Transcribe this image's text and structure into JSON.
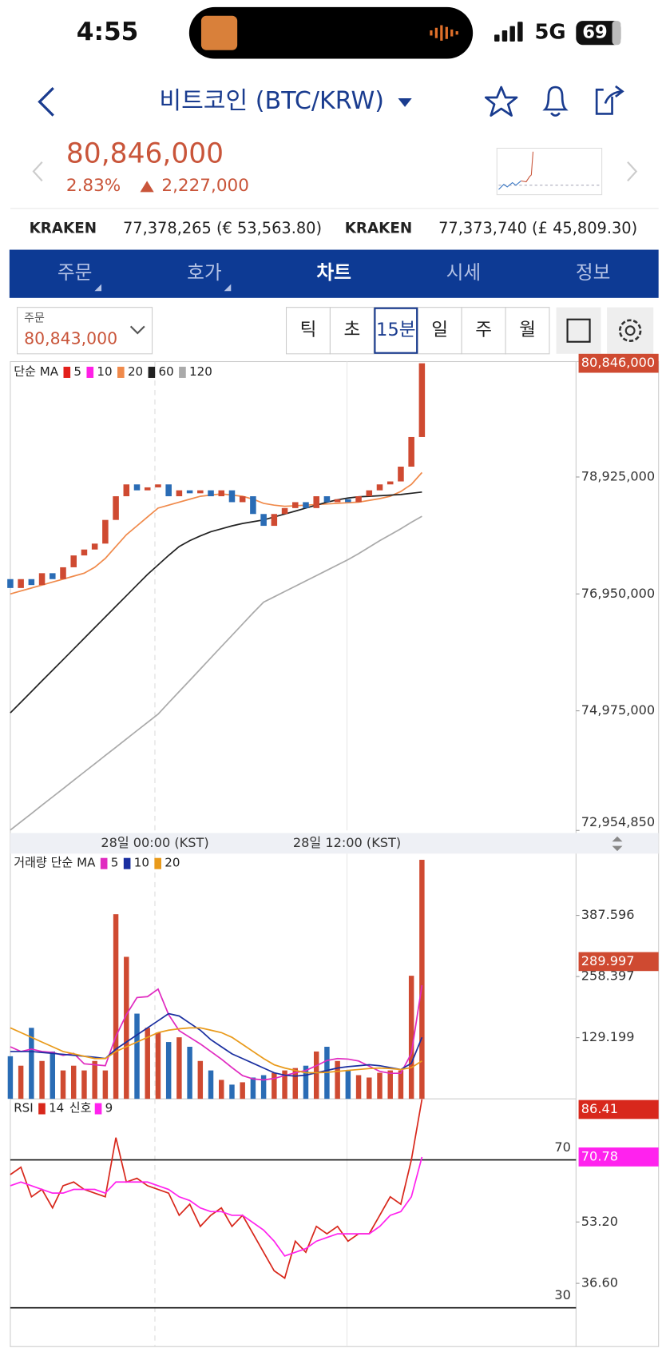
{
  "status": {
    "time": "4:55",
    "network": "5G",
    "battery": "69"
  },
  "header": {
    "title": "비트코인 (BTC/KRW)"
  },
  "quote": {
    "price": "80,846,000",
    "change_pct": "2.83%",
    "change": "2,227,000"
  },
  "exchanges": [
    {
      "name": "KRAKEN",
      "value": "77,378,265 (€ 53,563.80)"
    },
    {
      "name": "KRAKEN",
      "value": "77,373,740 (£ 45,809.30)"
    }
  ],
  "tabs": [
    "주문",
    "호가",
    "차트",
    "시세",
    "정보"
  ],
  "selected_tab": 2,
  "order": {
    "label": "주문",
    "value": "80,843,000"
  },
  "intervals": [
    "틱",
    "초",
    "15분",
    "일",
    "주",
    "월"
  ],
  "selected_interval": 2,
  "chart_data": [
    {
      "type": "candlestick",
      "legend_label": "단순 MA",
      "x": [
        0,
        1,
        2,
        3,
        4,
        5,
        6,
        7,
        8,
        9,
        10,
        11,
        12,
        13,
        14,
        15,
        16,
        17,
        18,
        19,
        20,
        21,
        22,
        23,
        24,
        25,
        26,
        27,
        28,
        29,
        30,
        31,
        32,
        33,
        34,
        35,
        36,
        37,
        38,
        39
      ],
      "open": [
        77200000,
        77050000,
        77200000,
        77100000,
        77300000,
        77200000,
        77400000,
        77600000,
        77700000,
        77800000,
        78200000,
        78600000,
        78800000,
        78700000,
        78750000,
        78800000,
        78600000,
        78700000,
        78650000,
        78700000,
        78600000,
        78700000,
        78500000,
        78600000,
        78300000,
        78100000,
        78300000,
        78400000,
        78500000,
        78400000,
        78600000,
        78500000,
        78550000,
        78500000,
        78600000,
        78700000,
        78800000,
        78850000,
        79100000,
        79600000
      ],
      "close": [
        77050000,
        77200000,
        77100000,
        77300000,
        77200000,
        77400000,
        77600000,
        77700000,
        77800000,
        78200000,
        78600000,
        78800000,
        78700000,
        78750000,
        78800000,
        78600000,
        78700000,
        78650000,
        78700000,
        78600000,
        78700000,
        78500000,
        78600000,
        78300000,
        78100000,
        78300000,
        78400000,
        78500000,
        78400000,
        78600000,
        78500000,
        78550000,
        78500000,
        78600000,
        78700000,
        78800000,
        78850000,
        79100000,
        79600000,
        80846000
      ],
      "up_color": "#cf4a31",
      "down_color": "#2a6cb5",
      "series": [
        {
          "name": "5",
          "color": "#e3201b"
        },
        {
          "name": "10",
          "color": "#ff1fe6"
        },
        {
          "name": "20",
          "color": "#f08a4b",
          "values": [
            76950000,
            77000000,
            77050000,
            77100000,
            77150000,
            77200000,
            77250000,
            77300000,
            77400000,
            77550000,
            77750000,
            77950000,
            78100000,
            78250000,
            78400000,
            78450000,
            78500000,
            78550000,
            78600000,
            78620000,
            78640000,
            78620000,
            78600000,
            78550000,
            78480000,
            78450000,
            78430000,
            78440000,
            78450000,
            78460000,
            78470000,
            78480000,
            78490000,
            78500000,
            78530000,
            78560000,
            78600000,
            78680000,
            78800000,
            79000000
          ]
        },
        {
          "name": "60",
          "color": "#222222",
          "values": [
            74940000,
            75120000,
            75300000,
            75480000,
            75660000,
            75840000,
            76020000,
            76200000,
            76380000,
            76560000,
            76740000,
            76920000,
            77100000,
            77280000,
            77440000,
            77600000,
            77750000,
            77850000,
            77930000,
            78000000,
            78050000,
            78100000,
            78140000,
            78170000,
            78200000,
            78250000,
            78300000,
            78350000,
            78400000,
            78450000,
            78500000,
            78540000,
            78570000,
            78590000,
            78600000,
            78610000,
            78620000,
            78630000,
            78650000,
            78670000
          ]
        },
        {
          "name": "120",
          "color": "#aaaaaa",
          "values": [
            72960000,
            73100000,
            73240000,
            73380000,
            73520000,
            73660000,
            73800000,
            73940000,
            74080000,
            74220000,
            74360000,
            74500000,
            74640000,
            74780000,
            74920000,
            75110000,
            75300000,
            75490000,
            75680000,
            75870000,
            76060000,
            76250000,
            76440000,
            76630000,
            76810000,
            76900000,
            76990000,
            77080000,
            77170000,
            77260000,
            77350000,
            77440000,
            77530000,
            77630000,
            77740000,
            77850000,
            77950000,
            78050000,
            78160000,
            78260000
          ]
        }
      ],
      "xlim": [
        0,
        53.6
      ],
      "xticks": [
        {
          "value": 13.7,
          "label": "28일 00:00 (KST)"
        },
        {
          "value": 31.9,
          "label": "28일 12:00 (KST)"
        }
      ],
      "ylim": [
        72954850,
        80846000
      ],
      "yticks": [
        {
          "value": 78925000,
          "label": "78,925,000"
        },
        {
          "value": 76950000,
          "label": "76,950,000"
        },
        {
          "value": 74975000,
          "label": "74,975,000"
        },
        {
          "value": 72954850,
          "label": "72,954,850"
        }
      ],
      "last_price": {
        "value": 80846000,
        "label": "80,846,000"
      }
    },
    {
      "type": "bar",
      "legend_label": "거래량 단순 MA",
      "x": [
        0,
        1,
        2,
        3,
        4,
        5,
        6,
        7,
        8,
        9,
        10,
        11,
        12,
        13,
        14,
        15,
        16,
        17,
        18,
        19,
        20,
        21,
        22,
        23,
        24,
        25,
        26,
        27,
        28,
        29,
        30,
        31,
        32,
        33,
        34,
        35,
        36,
        37,
        38,
        39
      ],
      "values": [
        90,
        70,
        150,
        80,
        100,
        60,
        70,
        60,
        80,
        60,
        390,
        300,
        180,
        150,
        140,
        120,
        130,
        110,
        80,
        60,
        40,
        30,
        35,
        45,
        50,
        55,
        60,
        65,
        70,
        100,
        110,
        80,
        60,
        50,
        45,
        55,
        60,
        60,
        260,
        505
      ],
      "series": [
        {
          "name": "5",
          "color": "#e02bc0",
          "values": [
            110,
            100,
            105,
            100,
            98,
            92,
            96,
            74,
            72,
            70,
            132,
            178,
            214,
            216,
            232,
            178,
            144,
            130,
            116,
            100,
            84,
            66,
            49,
            42,
            40,
            43,
            49,
            55,
            60,
            70,
            81,
            85,
            84,
            80,
            69,
            58,
            54,
            54,
            96,
            240
          ]
        },
        {
          "name": "10",
          "color": "#1a2fa0",
          "values": [
            100,
            100,
            100,
            98,
            96,
            94,
            92,
            90,
            88,
            85,
            105,
            120,
            135,
            150,
            165,
            180,
            175,
            160,
            145,
            125,
            110,
            95,
            85,
            75,
            65,
            55,
            50,
            48,
            50,
            55,
            60,
            65,
            68,
            70,
            72,
            70,
            66,
            62,
            75,
            130
          ]
        },
        {
          "name": "20",
          "color": "#e99a1a",
          "values": [
            150,
            140,
            130,
            120,
            110,
            100,
            95,
            90,
            85,
            85,
            100,
            110,
            120,
            130,
            140,
            145,
            148,
            150,
            150,
            145,
            140,
            130,
            115,
            100,
            85,
            72,
            65,
            60,
            55,
            55,
            56,
            58,
            60,
            62,
            64,
            65,
            64,
            62,
            66,
            80
          ]
        }
      ],
      "xlim": [
        0,
        53.6
      ],
      "ylim": [
        0,
        518
      ],
      "yticks": [
        129.199,
        258.397,
        387.596
      ],
      "last_value": 289.997
    },
    {
      "type": "line",
      "legend_label": "RSI",
      "x": [
        0,
        1,
        2,
        3,
        4,
        5,
        6,
        7,
        8,
        9,
        10,
        11,
        12,
        13,
        14,
        15,
        16,
        17,
        18,
        19,
        20,
        21,
        22,
        23,
        24,
        25,
        26,
        27,
        28,
        29,
        30,
        31,
        32,
        33,
        34,
        35,
        36,
        37,
        38,
        39
      ],
      "series": [
        {
          "name": "14",
          "color": "#d8281c",
          "values": [
            66,
            68,
            60,
            62,
            57,
            63,
            64,
            62,
            61,
            60,
            76,
            64,
            65,
            63,
            62,
            61,
            55,
            58,
            52,
            55,
            57,
            52,
            55,
            50,
            45,
            40,
            38,
            48,
            45,
            52,
            50,
            52,
            48,
            50,
            50,
            55,
            60,
            58,
            70,
            86.41
          ]
        },
        {
          "prefix": "신호",
          "name": "9",
          "color": "#ff22ee",
          "values": [
            63,
            64,
            63,
            62,
            61,
            61,
            62,
            62,
            62,
            61,
            64,
            64,
            64,
            64,
            63,
            62,
            60,
            59,
            57,
            56,
            56,
            55,
            55,
            53,
            51,
            48,
            44,
            45,
            46,
            48,
            49,
            50,
            50,
            50,
            50,
            52,
            55,
            56,
            60,
            70.78
          ]
        }
      ],
      "xlim": [
        0,
        53.6
      ],
      "ylim": [
        19.5,
        86.5
      ],
      "yticks": [
        {
          "value": 53.2,
          "label": "53.20"
        },
        {
          "value": 36.6,
          "label": "36.60"
        }
      ],
      "levels": [
        70,
        30
      ],
      "last_values": [
        86.41,
        70.78
      ]
    }
  ]
}
